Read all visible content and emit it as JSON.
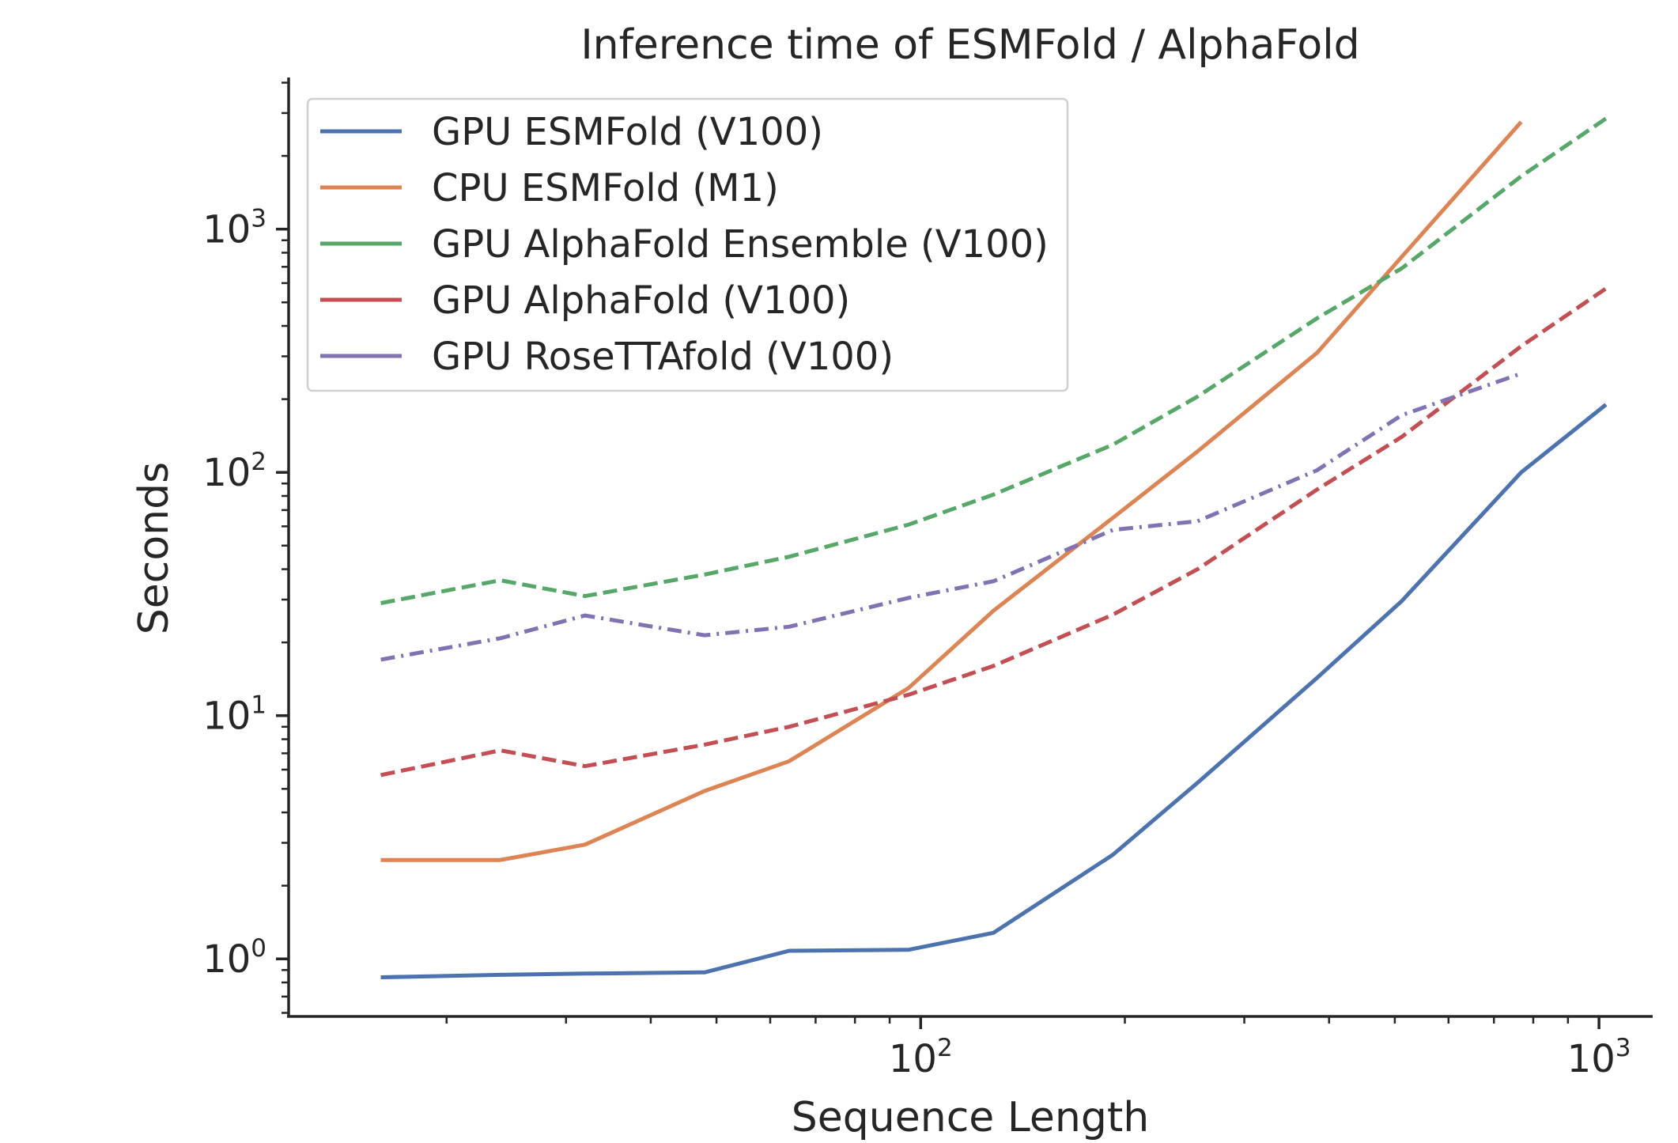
{
  "chart_data": {
    "type": "line",
    "title": "Inference time of ESMFold / AlphaFold",
    "xlabel": "Sequence Length",
    "ylabel": "Seconds",
    "xscale": "log",
    "yscale": "log",
    "xlim": [
      11.7,
      1200
    ],
    "ylim": [
      0.58,
      4200
    ],
    "x_ticks": [
      {
        "value": 100,
        "base": "10",
        "exp": "2"
      },
      {
        "value": 1000,
        "base": "10",
        "exp": "3"
      }
    ],
    "y_ticks": [
      {
        "value": 1,
        "base": "10",
        "exp": "0"
      },
      {
        "value": 10,
        "base": "10",
        "exp": "1"
      },
      {
        "value": 100,
        "base": "10",
        "exp": "2"
      },
      {
        "value": 1000,
        "base": "10",
        "exp": "3"
      }
    ],
    "grid": false,
    "legend_position": "upper-left",
    "series": [
      {
        "name": "GPU ESMFold (V100)",
        "color": "#4c72b0",
        "style": "solid",
        "x": [
          16,
          24,
          32,
          48,
          64,
          96,
          128,
          192,
          256,
          384,
          512,
          768,
          1024
        ],
        "y": [
          0.84,
          0.86,
          0.87,
          0.88,
          1.08,
          1.09,
          1.28,
          2.68,
          5.3,
          14.3,
          29.6,
          100,
          190
        ]
      },
      {
        "name": "CPU ESMFold (M1)",
        "color": "#dd8452",
        "style": "solid",
        "x": [
          16,
          24,
          32,
          48,
          64,
          96,
          128,
          192,
          256,
          384,
          512,
          768
        ],
        "y": [
          2.55,
          2.55,
          2.95,
          4.9,
          6.5,
          13,
          27,
          65,
          122,
          310,
          770,
          2760
        ]
      },
      {
        "name": "GPU AlphaFold Ensemble (V100)",
        "color": "#55a868",
        "style": "dashed",
        "x": [
          16,
          24,
          32,
          48,
          64,
          96,
          128,
          192,
          256,
          384,
          512,
          768,
          1024
        ],
        "y": [
          29,
          36,
          31,
          38,
          45,
          61,
          81,
          130,
          205,
          430,
          690,
          1650,
          2850
        ]
      },
      {
        "name": "GPU AlphaFold (V100)",
        "color": "#c44e52",
        "style": "dashed",
        "x": [
          16,
          24,
          32,
          48,
          64,
          96,
          128,
          192,
          256,
          384,
          512,
          768,
          1024
        ],
        "y": [
          5.7,
          7.2,
          6.2,
          7.6,
          9,
          12.2,
          16,
          26,
          40,
          85,
          140,
          330,
          570
        ]
      },
      {
        "name": "GPU RoseTTAfold (V100)",
        "color": "#8172b3",
        "style": "dashdot",
        "x": [
          16,
          24,
          32,
          48,
          64,
          96,
          128,
          192,
          256,
          384,
          512,
          768
        ],
        "y": [
          17,
          20.8,
          25.8,
          21.4,
          23.2,
          30.5,
          35.7,
          58,
          63,
          102,
          172,
          255
        ]
      }
    ]
  }
}
